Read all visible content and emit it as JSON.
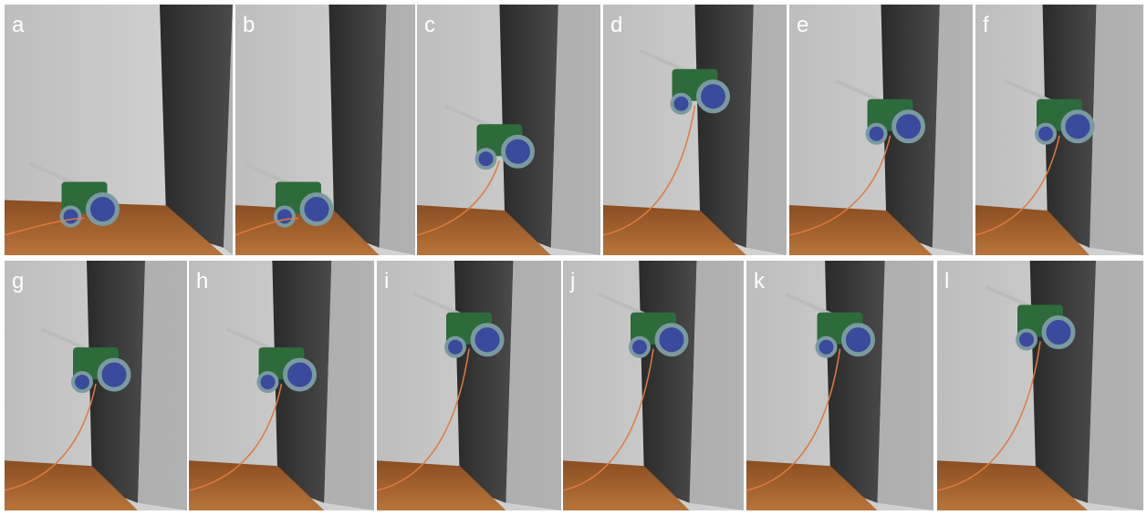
{
  "panels": [
    {
      "label": "a"
    },
    {
      "label": "b"
    },
    {
      "label": "c"
    },
    {
      "label": "d"
    },
    {
      "label": "e"
    },
    {
      "label": "f"
    },
    {
      "label": "g"
    },
    {
      "label": "h"
    },
    {
      "label": "i"
    },
    {
      "label": "j"
    },
    {
      "label": "k"
    },
    {
      "label": "l"
    }
  ]
}
